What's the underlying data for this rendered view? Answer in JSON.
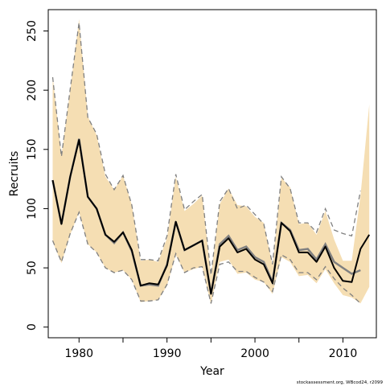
{
  "chart_data": {
    "type": "line",
    "xlabel": "Year",
    "ylabel": "Recruits",
    "xlim": [
      1976.5,
      2013.8
    ],
    "ylim": [
      -9,
      268
    ],
    "x_ticks": [
      1980,
      1990,
      2000,
      2010
    ],
    "x_minor_ticks": [
      1985,
      1995,
      2005
    ],
    "y_ticks": [
      0,
      50,
      100,
      150,
      200,
      250
    ],
    "grid": false,
    "legend": "none",
    "credit": "stockassessment.org, WBcod24, r2099",
    "colors": {
      "band": "#f5deb3",
      "estimate": "#000000",
      "previous": "#808080",
      "bounds": "#808080"
    },
    "x": [
      1977,
      1978,
      1979,
      1980,
      1981,
      1982,
      1983,
      1984,
      1985,
      1986,
      1987,
      1988,
      1989,
      1990,
      1991,
      1992,
      1993,
      1994,
      1995,
      1996,
      1997,
      1998,
      1999,
      2000,
      2001,
      2002,
      2003,
      2004,
      2005,
      2006,
      2007,
      2008,
      2009,
      2010,
      2011,
      2012,
      2013
    ],
    "band_lower": [
      72,
      54,
      78,
      97,
      70,
      63,
      50,
      46,
      48,
      40,
      21,
      22,
      23,
      35,
      61,
      46,
      49,
      51,
      19,
      55,
      57,
      45,
      46,
      40,
      38,
      28,
      59,
      55,
      43,
      44,
      37,
      49,
      37,
      27,
      25,
      20,
      34
    ],
    "band_upper": [
      212,
      145,
      200,
      260,
      178,
      162,
      127,
      116,
      128,
      103,
      56,
      57,
      55,
      75,
      127,
      98,
      104,
      111,
      43,
      104,
      117,
      103,
      102,
      93,
      88,
      52,
      126,
      118,
      87,
      88,
      78,
      98,
      74,
      56,
      56,
      111,
      188
    ],
    "estimate": [
      124,
      87,
      127,
      158,
      110,
      100,
      78,
      72,
      80,
      65,
      35,
      37,
      36,
      52,
      89,
      65,
      69,
      73,
      28,
      68,
      75,
      63,
      66,
      57,
      53,
      37,
      88,
      81,
      63,
      63,
      55,
      68,
      50,
      39,
      38,
      66,
      78
    ],
    "series": [
      {
        "values": [
          124,
          87,
          127,
          159,
          110,
          100,
          78,
          71,
          80,
          64,
          35,
          36,
          35,
          53,
          89,
          65,
          69,
          73,
          28,
          70,
          77,
          65,
          68,
          59,
          55,
          38,
          88,
          82,
          65,
          66,
          57,
          70,
          55,
          50,
          45,
          48,
          null
        ]
      },
      {
        "values": [
          211,
          144,
          201,
          257,
          177,
          163,
          129,
          116,
          128,
          103,
          57,
          57,
          56,
          77,
          129,
          99,
          106,
          112,
          44,
          106,
          117,
          100,
          103,
          95,
          87,
          53,
          127,
          117,
          88,
          88,
          80,
          100,
          82,
          79,
          77,
          115,
          null
        ]
      },
      {
        "values": [
          73,
          55,
          79,
          97,
          70,
          63,
          50,
          46,
          48,
          40,
          22,
          22,
          23,
          36,
          62,
          46,
          50,
          51,
          20,
          53,
          55,
          47,
          47,
          42,
          38,
          30,
          61,
          57,
          46,
          46,
          40,
          51,
          41,
          33,
          27,
          20,
          null
        ]
      }
    ]
  }
}
